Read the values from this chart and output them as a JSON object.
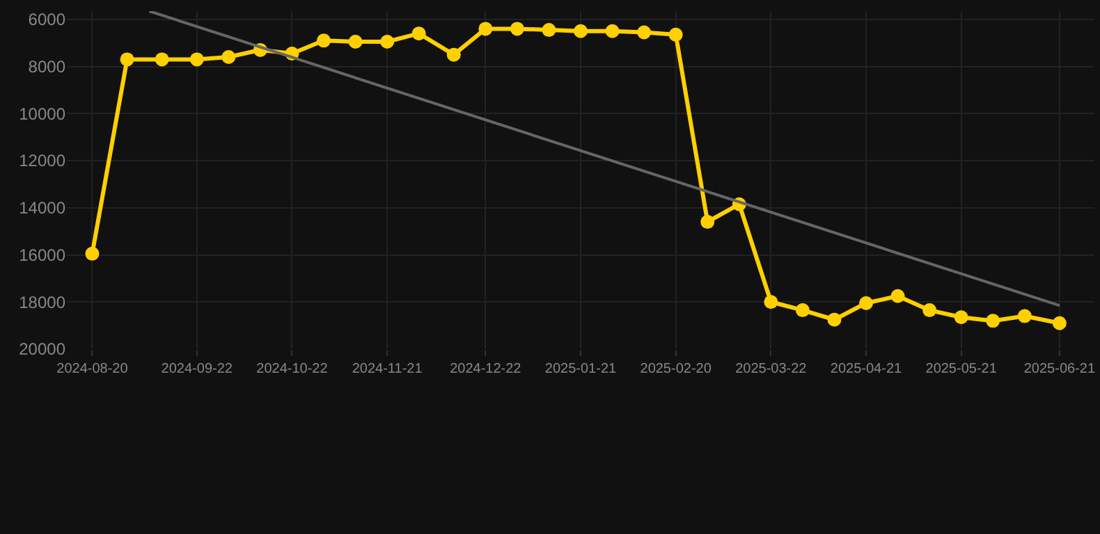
{
  "chart_data": {
    "type": "line",
    "x": [
      "2024-08-20",
      "2024-08-31",
      "2024-09-11",
      "2024-09-22",
      "2024-10-02",
      "2024-10-12",
      "2024-10-22",
      "2024-11-01",
      "2024-11-11",
      "2024-11-21",
      "2024-12-01",
      "2024-12-12",
      "2024-12-22",
      "2025-01-01",
      "2025-01-11",
      "2025-01-21",
      "2025-01-31",
      "2025-02-10",
      "2025-02-20",
      "2025-03-02",
      "2025-03-12",
      "2025-03-22",
      "2025-04-01",
      "2025-04-11",
      "2025-04-21",
      "2025-05-01",
      "2025-05-11",
      "2025-05-21",
      "2025-05-31",
      "2025-06-10",
      "2025-06-21"
    ],
    "series": [
      {
        "color": "#ffd000",
        "marker": "circle",
        "values": [
          15950,
          7700,
          7700,
          7700,
          7600,
          7300,
          7450,
          6900,
          6950,
          6950,
          6600,
          7500,
          6400,
          6400,
          6450,
          6500,
          6500,
          6550,
          6650,
          14600,
          13850,
          18000,
          18350,
          18750,
          18050,
          17750,
          18350,
          18650,
          18800,
          18600,
          18900
        ]
      },
      {
        "type": "line",
        "color": "#666666",
        "marker": "none",
        "x": [
          "2024-09-07",
          "2025-06-21"
        ],
        "values": [
          5650,
          18150
        ]
      }
    ],
    "xlim": [
      "2024-08-12",
      "2025-07-02"
    ],
    "xticks": [
      "2024-08-20",
      "2024-09-22",
      "2024-10-22",
      "2024-11-21",
      "2024-12-22",
      "2025-01-21",
      "2025-02-20",
      "2025-03-22",
      "2025-04-21",
      "2025-05-21",
      "2025-06-21"
    ],
    "ylim": [
      20000,
      5650
    ],
    "yticks": [
      6000,
      8000,
      10000,
      12000,
      14000,
      16000,
      18000,
      20000
    ],
    "grid": true
  }
}
